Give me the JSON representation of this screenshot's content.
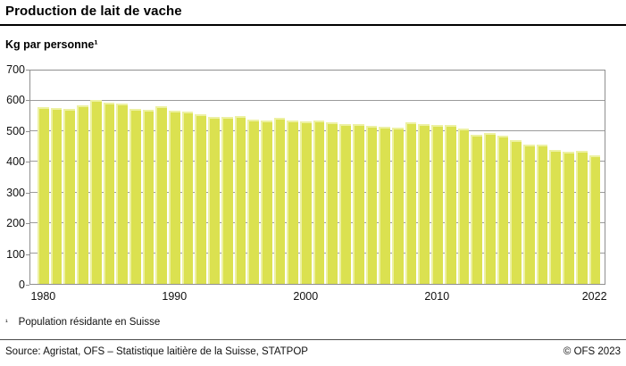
{
  "header": {
    "title": "Production de lait de vache",
    "subtitle": "Kg par personne¹"
  },
  "chart_data": {
    "type": "bar",
    "title": "Production de lait de vache",
    "ylabel": "Kg par personne¹",
    "xlabel": "",
    "grid": true,
    "legend": false,
    "ylim": [
      0,
      700
    ],
    "yticks": [
      0,
      100,
      200,
      300,
      400,
      500,
      600,
      700
    ],
    "xticks": [
      {
        "label": "1980",
        "index": 0
      },
      {
        "label": "1990",
        "index": 10
      },
      {
        "label": "2000",
        "index": 20
      },
      {
        "label": "2010",
        "index": 30
      },
      {
        "label": "2022",
        "index": 42
      }
    ],
    "x": [
      1980,
      1981,
      1982,
      1983,
      1984,
      1985,
      1986,
      1987,
      1988,
      1989,
      1990,
      1991,
      1992,
      1993,
      1994,
      1995,
      1996,
      1997,
      1998,
      1999,
      2000,
      2001,
      2002,
      2003,
      2004,
      2005,
      2006,
      2007,
      2008,
      2009,
      2010,
      2011,
      2012,
      2013,
      2014,
      2015,
      2016,
      2017,
      2018,
      2019,
      2020,
      2021,
      2022
    ],
    "values": [
      580,
      577,
      575,
      587,
      602,
      595,
      591,
      575,
      571,
      584,
      568,
      566,
      556,
      549,
      547,
      552,
      540,
      535,
      544,
      537,
      533,
      535,
      530,
      523,
      525,
      519,
      516,
      513,
      530,
      524,
      520,
      521,
      509,
      490,
      494,
      486,
      471,
      458,
      457,
      440,
      434,
      436,
      421
    ]
  },
  "colors": {
    "bar_fill": "#dbe150",
    "bar_highlight": "#edf1a2",
    "grid": "#9b9b9b",
    "frame": "#8f8f8f",
    "title_rule": "#000000",
    "divider": "#4a4a4a"
  },
  "footnote": {
    "marker": "¹",
    "text": "Population résidante en Suisse"
  },
  "footer": {
    "source": "Source: Agristat, OFS – Statistique laitière de la Suisse, STATPOP",
    "copyright": "© OFS 2023"
  }
}
